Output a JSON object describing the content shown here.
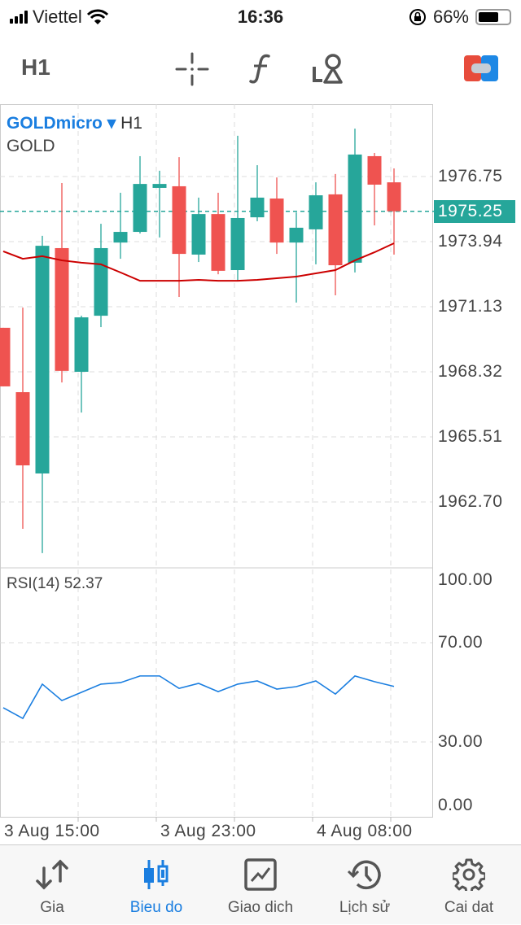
{
  "status_bar": {
    "carrier": "Viettel",
    "time": "16:36",
    "battery": "66%",
    "battery_level": 0.66
  },
  "toolbar": {
    "timeframe": "H1",
    "icons": [
      "crosshair-icon",
      "indicators-f-icon",
      "objects-icon",
      "trade-toggle-icon"
    ]
  },
  "chart": {
    "symbol": "GOLDmicro",
    "dropdown_glyph": "▾",
    "timeframe": "H1",
    "description": "GOLD",
    "current_price": "1975.25",
    "price_labels": [
      "1976.75",
      "1973.94",
      "1971.13",
      "1968.32",
      "1965.51",
      "1962.70"
    ],
    "rsi_label": "RSI(14) 52.37",
    "rsi_labels": [
      "100.00",
      "70.00",
      "30.00",
      "0.00"
    ],
    "time_labels": [
      "3 Aug 15:00",
      "3 Aug 23:00",
      "4 Aug 08:00"
    ],
    "colors": {
      "bull": "#26a69a",
      "bear": "#ef5350",
      "ma": "#cc0000",
      "rsi": "#1a7ee0",
      "accent": "#1a7ee0"
    }
  },
  "chart_data": {
    "type": "candlestick",
    "ylim": [
      1959.9,
      1979.8
    ],
    "candles": [
      {
        "o": 1970.22,
        "h": 1970.22,
        "l": 1967.69,
        "c": 1967.69
      },
      {
        "o": 1967.44,
        "h": 1971.09,
        "l": 1961.54,
        "c": 1964.28
      },
      {
        "o": 1963.93,
        "h": 1974.19,
        "l": 1960.49,
        "c": 1973.76
      },
      {
        "o": 1973.66,
        "h": 1976.47,
        "l": 1967.86,
        "c": 1968.36
      },
      {
        "o": 1968.32,
        "h": 1970.74,
        "l": 1966.56,
        "c": 1970.67
      },
      {
        "o": 1970.74,
        "h": 1974.71,
        "l": 1970.25,
        "c": 1973.66
      },
      {
        "o": 1973.9,
        "h": 1976.05,
        "l": 1973.2,
        "c": 1974.36
      },
      {
        "o": 1974.36,
        "h": 1977.63,
        "l": 1974.29,
        "c": 1976.43
      },
      {
        "o": 1976.26,
        "h": 1977.0,
        "l": 1974.12,
        "c": 1976.43
      },
      {
        "o": 1976.33,
        "h": 1977.59,
        "l": 1971.55,
        "c": 1973.41
      },
      {
        "o": 1973.38,
        "h": 1975.84,
        "l": 1973.06,
        "c": 1975.13
      },
      {
        "o": 1975.13,
        "h": 1976.05,
        "l": 1972.53,
        "c": 1972.68
      },
      {
        "o": 1972.71,
        "h": 1978.51,
        "l": 1972.25,
        "c": 1974.96
      },
      {
        "o": 1974.99,
        "h": 1977.24,
        "l": 1974.82,
        "c": 1975.84
      },
      {
        "o": 1975.8,
        "h": 1976.71,
        "l": 1973.41,
        "c": 1973.9
      },
      {
        "o": 1973.9,
        "h": 1975.2,
        "l": 1971.31,
        "c": 1974.54
      },
      {
        "o": 1974.47,
        "h": 1976.5,
        "l": 1972.96,
        "c": 1975.94
      },
      {
        "o": 1975.98,
        "h": 1976.86,
        "l": 1971.62,
        "c": 1972.92
      },
      {
        "o": 1973.03,
        "h": 1978.82,
        "l": 1972.61,
        "c": 1977.7
      },
      {
        "o": 1977.63,
        "h": 1977.77,
        "l": 1974.64,
        "c": 1976.4
      },
      {
        "o": 1976.5,
        "h": 1977.1,
        "l": 1973.38,
        "c": 1975.25
      }
    ],
    "moving_average": [
      1973.52,
      1973.2,
      1973.31,
      1973.13,
      1973.03,
      1972.96,
      1972.61,
      1972.25,
      1972.25,
      1972.25,
      1972.29,
      1972.25,
      1972.25,
      1972.29,
      1972.36,
      1972.43,
      1972.57,
      1972.71,
      1973.13,
      1973.48,
      1973.87
    ],
    "rsi": {
      "ylim": [
        0,
        100
      ],
      "levels": [
        30,
        70
      ],
      "values": [
        43.8,
        39.5,
        53.3,
        46.7,
        50.0,
        53.3,
        53.9,
        56.6,
        56.6,
        51.6,
        53.6,
        50.3,
        53.3,
        54.6,
        51.3,
        52.3,
        54.6,
        49.3,
        56.6,
        54.3,
        52.37
      ]
    },
    "grid": true
  },
  "tabs": [
    {
      "label": "Gia",
      "icon": "quotes-arrows-icon"
    },
    {
      "label": "Bieu do",
      "icon": "chart-candles-icon",
      "active": true
    },
    {
      "label": "Giao dich",
      "icon": "trade-chart-icon"
    },
    {
      "label": "Lịch sử",
      "icon": "history-icon"
    },
    {
      "label": "Cai dat",
      "icon": "settings-gear-icon"
    }
  ]
}
